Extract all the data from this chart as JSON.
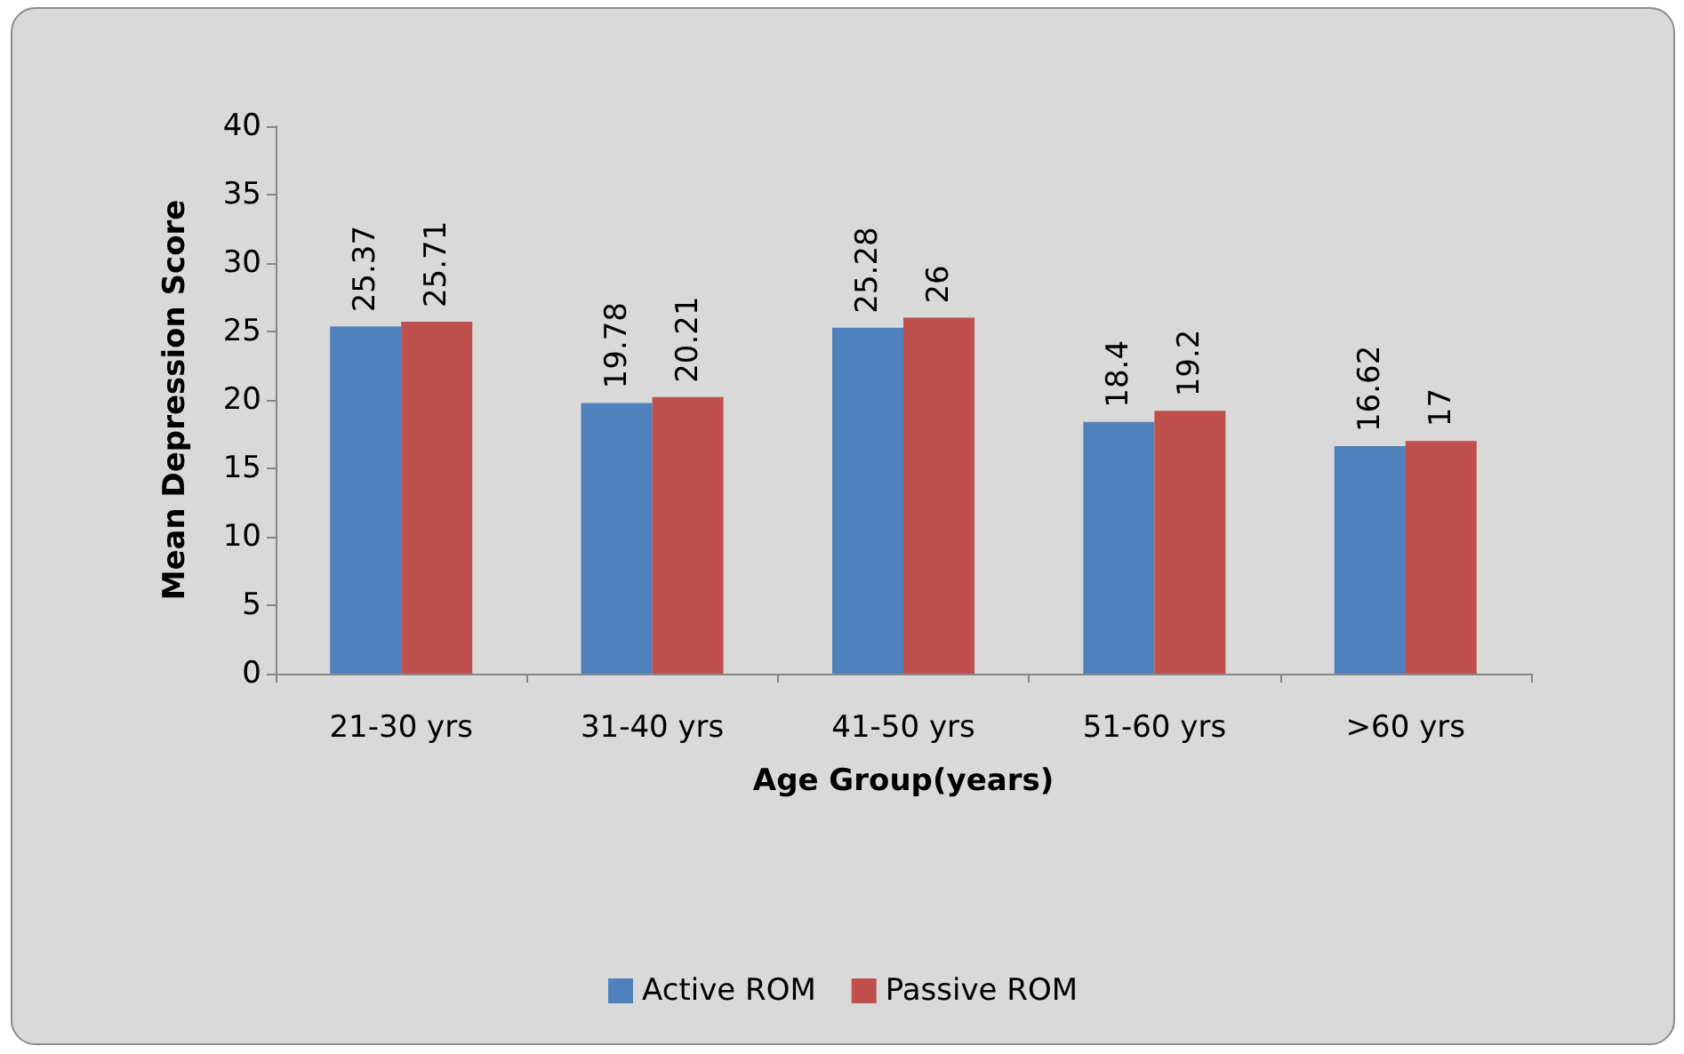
{
  "chart_data": {
    "type": "bar",
    "xlabel": "Age Group(years)",
    "ylabel": "Mean Depression Score",
    "categories": [
      "21-30 yrs",
      "31-40 yrs",
      "41-50 yrs",
      "51-60 yrs",
      ">60 yrs"
    ],
    "series": [
      {
        "name": "Active ROM",
        "color": "#4f81bd",
        "values": [
          25.37,
          19.78,
          25.28,
          18.4,
          16.62
        ]
      },
      {
        "name": "Passive ROM",
        "color": "#c0504d",
        "values": [
          25.71,
          20.21,
          26,
          19.2,
          17
        ]
      }
    ],
    "ylim": [
      0,
      40
    ],
    "yticks": [
      0,
      5,
      10,
      15,
      20,
      25,
      30,
      35,
      40
    ],
    "grid": false,
    "legend": "bottom",
    "data_labels": true
  }
}
